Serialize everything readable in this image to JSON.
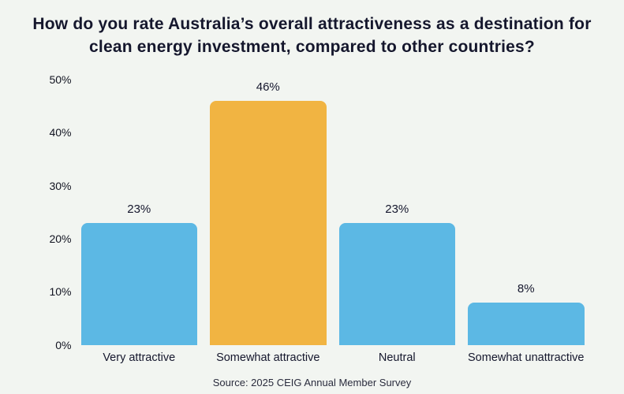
{
  "chart_data": {
    "type": "bar",
    "title": "How do you rate Australia’s overall attractiveness as a destination for clean energy investment, compared to other countries?",
    "categories": [
      "Very attractive",
      "Somewhat attractive",
      "Neutral",
      "Somewhat unattractive"
    ],
    "values": [
      23,
      46,
      23,
      8
    ],
    "value_labels": [
      "23%",
      "46%",
      "23%",
      "8%"
    ],
    "bar_colors": [
      "#5cb8e4",
      "#f1b442",
      "#5cb8e4",
      "#5cb8e4"
    ],
    "highlight_index": 1,
    "xlabel": "",
    "ylabel": "",
    "ylim": [
      0,
      50
    ],
    "yticks": [
      0,
      10,
      20,
      30,
      40,
      50
    ],
    "ytick_labels": [
      "0%",
      "10%",
      "20%",
      "30%",
      "40%",
      "50%"
    ],
    "grid": false,
    "legend": false,
    "source": "Source: 2025 CEIG Annual Member Survey"
  },
  "colors": {
    "background": "#f2f5f1",
    "bar_blue": "#5cb8e4",
    "bar_orange": "#f1b442",
    "text_dark": "#15172d"
  }
}
